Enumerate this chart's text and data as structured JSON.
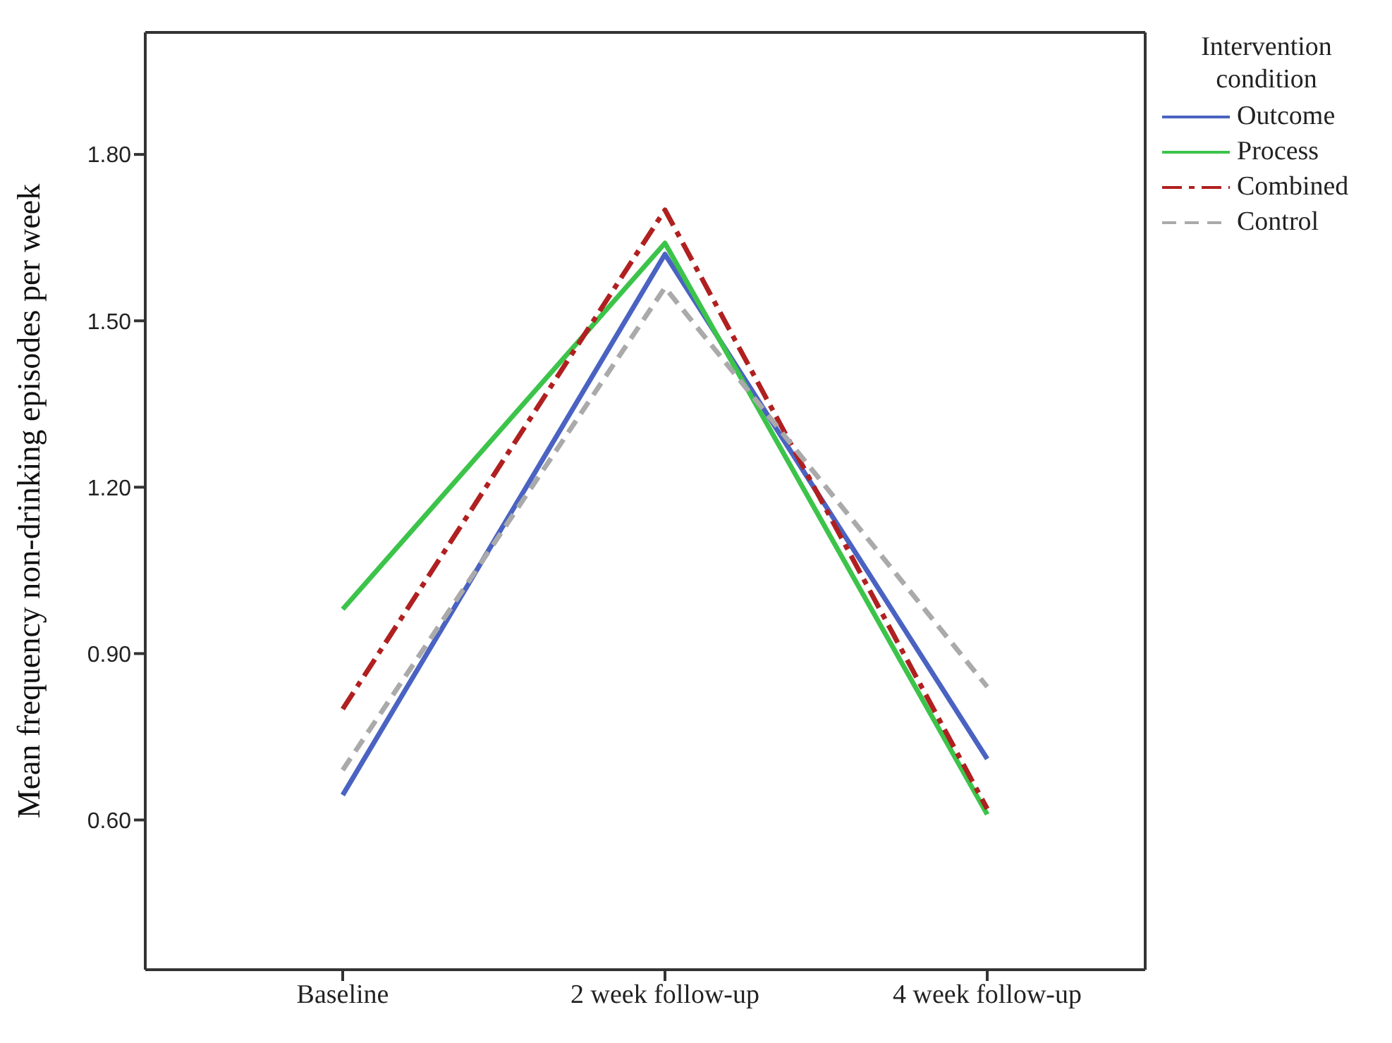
{
  "chart_data": {
    "type": "line",
    "ylabel": "Mean frequency non-drinking episodes per week",
    "legend_title": "Intervention condition",
    "categories": [
      "Baseline",
      "2 week follow-up",
      "4 week follow-up"
    ],
    "series": [
      {
        "name": "Outcome",
        "color": "#4a63c2",
        "line_style": "solid",
        "values": [
          0.645,
          1.62,
          0.71
        ]
      },
      {
        "name": "Process",
        "color": "#3cc44a",
        "line_style": "solid",
        "values": [
          0.98,
          1.64,
          0.61
        ]
      },
      {
        "name": "Combined",
        "color": "#b02020",
        "line_style": "dashdot",
        "values": [
          0.8,
          1.7,
          0.62
        ]
      },
      {
        "name": "Control",
        "color": "#aaaaaa",
        "line_style": "dashed",
        "values": [
          0.69,
          1.56,
          0.84
        ]
      }
    ],
    "ylim": [
      0.33,
      2.02
    ],
    "yticks": [
      {
        "value": 0.6,
        "label": "0.60"
      },
      {
        "value": 0.9,
        "label": "0.90"
      },
      {
        "value": 1.2,
        "label": "1.20"
      },
      {
        "value": 1.5,
        "label": "1.50"
      },
      {
        "value": 1.8,
        "label": "1.80"
      }
    ],
    "grid": false,
    "legend": "top right",
    "marker": "none"
  }
}
